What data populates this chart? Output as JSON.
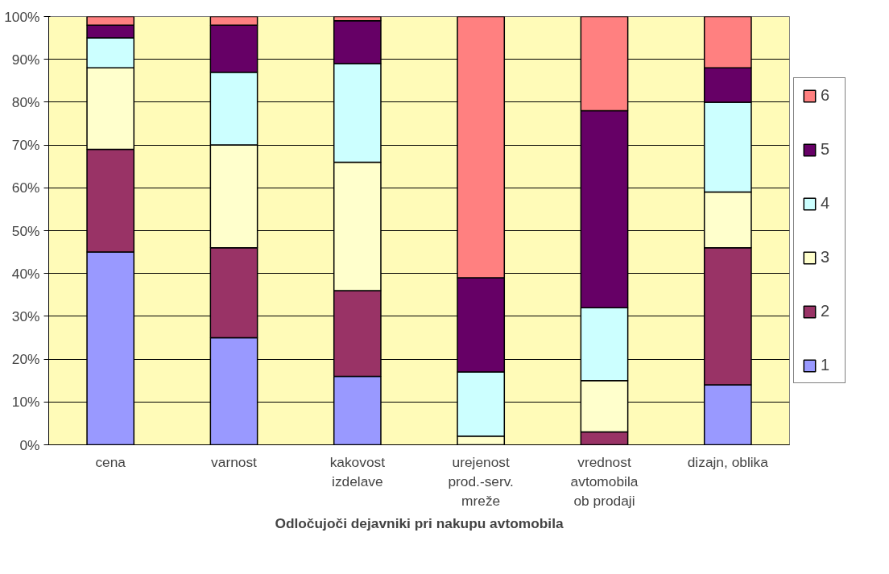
{
  "chart_data": {
    "type": "bar",
    "stacked": true,
    "xlabel": "Odločujoči dejavniki pri nakupu avtomobila",
    "categories": [
      "cena",
      "varnost",
      "kakovost\nizdelave",
      "urejenost\nprod.-serv.\nmreže",
      "vrednost\navtomobila\nob prodaji",
      "dizajn, oblika"
    ],
    "series": [
      {
        "name": "1",
        "color": "#9999ff",
        "values": [
          45,
          25,
          16,
          0,
          0,
          14
        ]
      },
      {
        "name": "2",
        "color": "#993366",
        "values": [
          24,
          21,
          20,
          0,
          3,
          32
        ]
      },
      {
        "name": "3",
        "color": "#ffffcc",
        "values": [
          19,
          24,
          30,
          2,
          12,
          13
        ]
      },
      {
        "name": "4",
        "color": "#ccffff",
        "values": [
          7,
          17,
          23,
          15,
          17,
          21
        ]
      },
      {
        "name": "5",
        "color": "#660066",
        "values": [
          3,
          11,
          10,
          22,
          46,
          8
        ]
      },
      {
        "name": "6",
        "color": "#ff8080",
        "values": [
          2,
          2,
          1,
          61,
          22,
          12
        ]
      }
    ],
    "ylim": [
      0,
      100
    ],
    "yticks": [
      {
        "value": 0,
        "label": "0%"
      },
      {
        "value": 10,
        "label": "10%"
      },
      {
        "value": 20,
        "label": "20%"
      },
      {
        "value": 30,
        "label": "30%"
      },
      {
        "value": 40,
        "label": "40%"
      },
      {
        "value": 50,
        "label": "50%"
      },
      {
        "value": 60,
        "label": "60%"
      },
      {
        "value": 70,
        "label": "70%"
      },
      {
        "value": 80,
        "label": "80%"
      },
      {
        "value": 90,
        "label": "90%"
      },
      {
        "value": 100,
        "label": "100%"
      }
    ],
    "grid": "y",
    "legend": "right"
  }
}
